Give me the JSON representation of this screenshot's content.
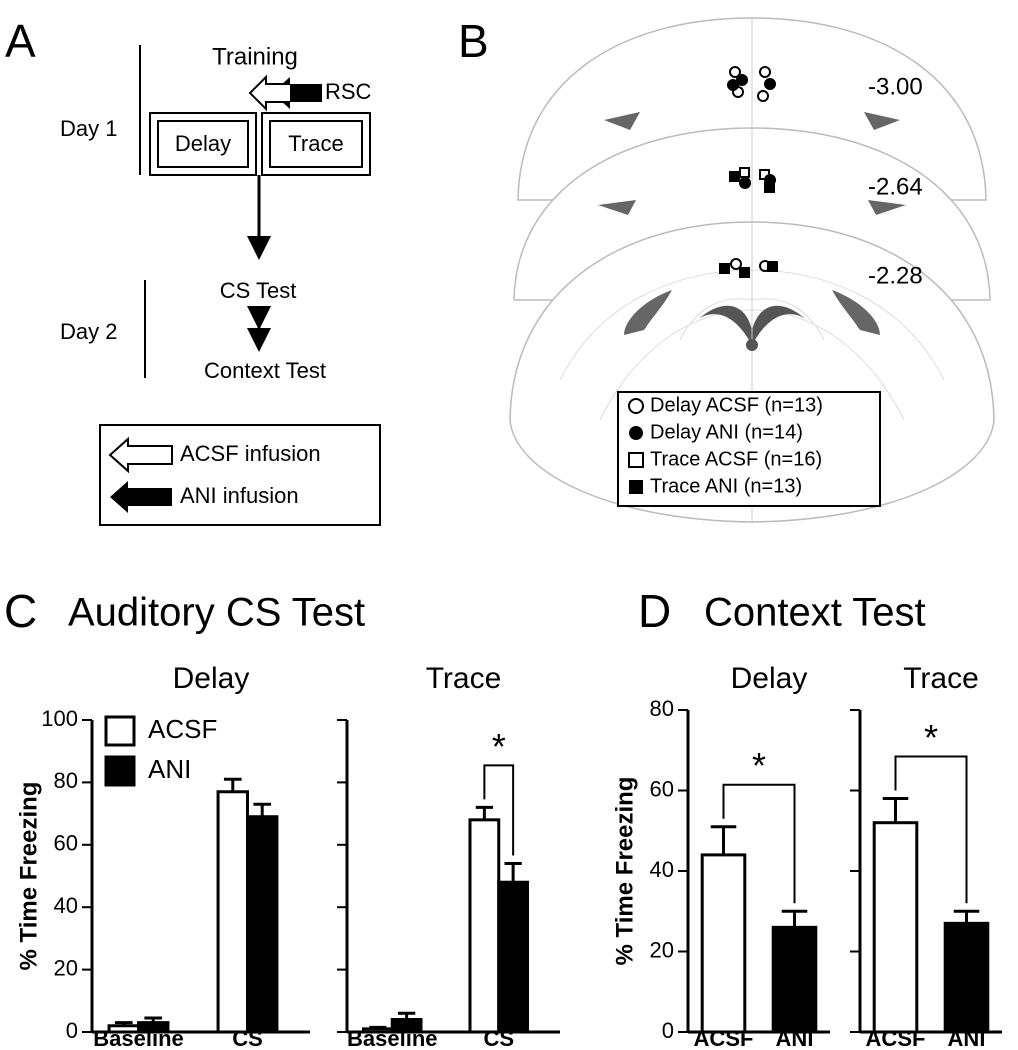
{
  "panel_a": {
    "letter": "A",
    "training": "Training",
    "rsc": "RSC",
    "day1": "Day 1",
    "delay": "Delay",
    "trace": "Trace",
    "day2": "Day 2",
    "cs_test": "CS Test",
    "context_test": "Context Test",
    "legend": [
      "ACSF infusion",
      "ANI infusion"
    ]
  },
  "panel_b": {
    "letter": "B",
    "coordinates": [
      "-3.00",
      "-2.64",
      "-2.28"
    ],
    "legend": [
      "Delay ACSF (n=13)",
      "Delay ANI (n=14)",
      "Trace ACSF (n=16)",
      "Trace ANI (n=13)"
    ]
  },
  "panel_c": {
    "letter": "C",
    "title": "Auditory CS Test"
  },
  "panel_d": {
    "letter": "D",
    "title": "Context Test"
  },
  "chart_data": [
    {
      "type": "grouped-bar",
      "title": "Delay",
      "ylabel": "% Time Freezing",
      "categories": [
        "Baseline",
        "CS"
      ],
      "series": [
        {
          "name": "ACSF",
          "color": "#ffffff",
          "values": [
            2,
            77
          ],
          "errors": [
            1,
            4
          ]
        },
        {
          "name": "ANI",
          "color": "#000000",
          "values": [
            3,
            69
          ],
          "errors": [
            1.5,
            4
          ]
        }
      ],
      "ylim": [
        0,
        100
      ],
      "yticks": [
        0,
        20,
        40,
        60,
        80,
        100
      ],
      "legend": true
    },
    {
      "type": "grouped-bar",
      "title": "Trace",
      "categories": [
        "Baseline",
        "CS"
      ],
      "series": [
        {
          "name": "ACSF",
          "color": "#ffffff",
          "values": [
            1,
            68
          ],
          "errors": [
            0.5,
            4
          ]
        },
        {
          "name": "ANI",
          "color": "#000000",
          "values": [
            4,
            48
          ],
          "errors": [
            2,
            6
          ]
        }
      ],
      "ylim": [
        0,
        100
      ],
      "yticks": [
        0,
        20,
        40,
        60,
        80,
        100
      ],
      "tick_labels": false,
      "annotation": "*"
    },
    {
      "type": "bar",
      "title": "Delay",
      "ylabel": "% Time Freezing",
      "categories": [
        "ACSF",
        "ANI"
      ],
      "values": [
        44,
        26
      ],
      "errors": [
        7,
        4
      ],
      "colors": [
        "#ffffff",
        "#000000"
      ],
      "ylim": [
        0,
        80
      ],
      "yticks": [
        0,
        20,
        40,
        60,
        80
      ],
      "annotation": "*"
    },
    {
      "type": "bar",
      "title": "Trace",
      "categories": [
        "ACSF",
        "ANI"
      ],
      "values": [
        52,
        27
      ],
      "errors": [
        6,
        3
      ],
      "colors": [
        "#ffffff",
        "#000000"
      ],
      "ylim": [
        0,
        80
      ],
      "yticks": [
        0,
        20,
        40,
        60,
        80
      ],
      "tick_labels": false,
      "annotation": "*"
    }
  ]
}
